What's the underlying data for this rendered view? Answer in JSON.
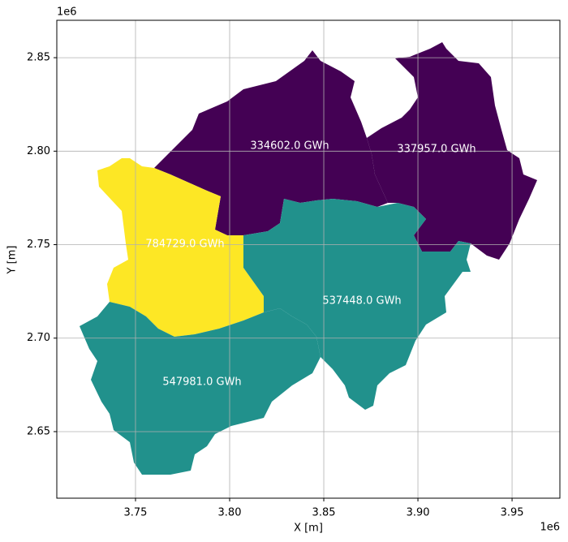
{
  "chart_data": {
    "type": "choropleth",
    "values": [
      334602,
      337957,
      784729,
      537448,
      547981
    ],
    "value_labels": [
      "334602.0 GWh",
      "337957.0 GWh",
      "784729.0 GWh",
      "537448.0 GWh",
      "547981.0 GWh"
    ],
    "colors": [
      "#440154",
      "#440154",
      "#fde725",
      "#21918c",
      "#21918c"
    ],
    "x_label": "X [m]",
    "y_label": "Y [m]",
    "axis_offset": "1e6",
    "xlim": [
      3.7082,
      3.9754
    ],
    "ylim": [
      2.6144,
      2.87
    ],
    "xticks": [
      3.75,
      {
        "value": 3.8,
        "label": "3.80"
      },
      3.85,
      {
        "value": 3.9,
        "label": "3.90"
      },
      3.95
    ],
    "yticks": [
      2.65,
      {
        "value": 2.7,
        "label": "2.70"
      },
      2.75,
      {
        "value": 2.8,
        "label": "2.80"
      },
      2.85
    ],
    "grid": true
  }
}
